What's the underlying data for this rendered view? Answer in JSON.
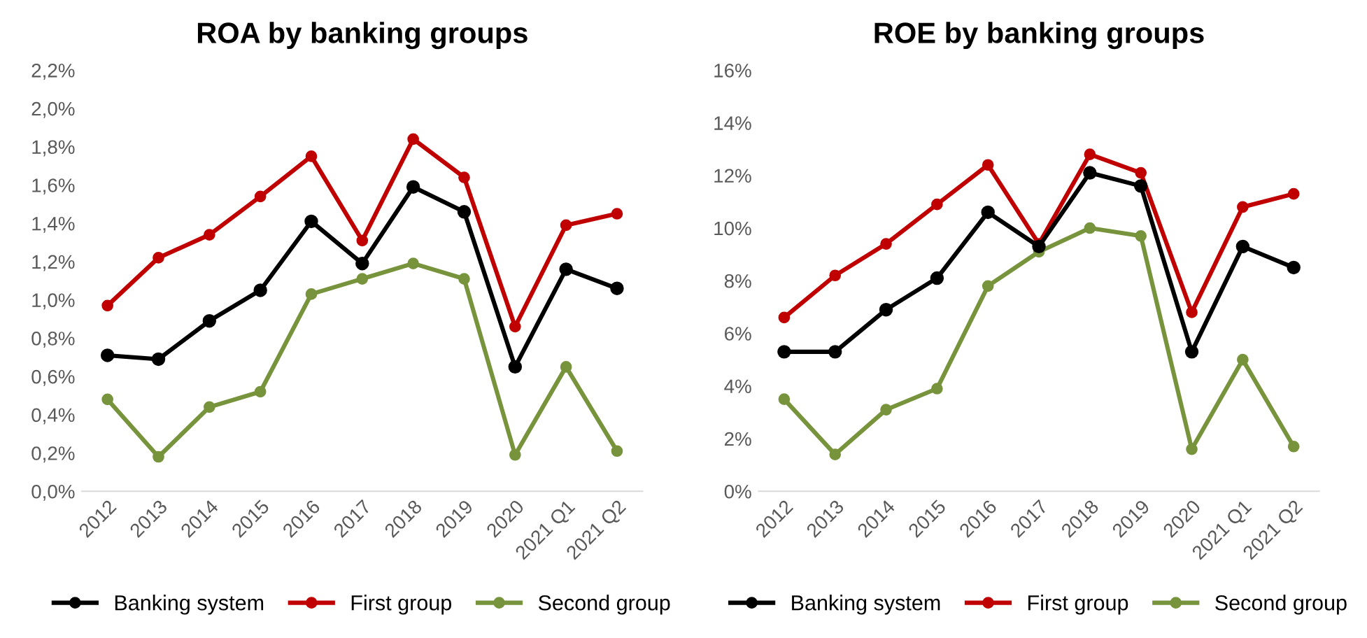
{
  "chart_data": [
    {
      "type": "line",
      "title": "ROA by banking groups",
      "categories": [
        "2012",
        "2013",
        "2014",
        "2015",
        "2016",
        "2017",
        "2018",
        "2019",
        "2020",
        "2021 Q1",
        "2021 Q2"
      ],
      "series": [
        {
          "name": "Banking system",
          "color": "#000000",
          "values": [
            0.71,
            0.69,
            0.89,
            1.05,
            1.41,
            1.19,
            1.59,
            1.46,
            0.65,
            1.16,
            1.06
          ]
        },
        {
          "name": "First group",
          "color": "#c00000",
          "values": [
            0.97,
            1.22,
            1.34,
            1.54,
            1.75,
            1.31,
            1.84,
            1.64,
            0.86,
            1.39,
            1.45
          ]
        },
        {
          "name": "Second group",
          "color": "#77933c",
          "values": [
            0.48,
            0.18,
            0.44,
            0.52,
            1.03,
            1.11,
            1.19,
            1.11,
            0.19,
            0.65,
            0.21
          ]
        }
      ],
      "ylim": [
        0,
        2.2
      ],
      "yticks": [
        {
          "value": 0,
          "label": "0,0%"
        },
        {
          "value": 0.2,
          "label": "0,2%"
        },
        {
          "value": 0.4,
          "label": "0,4%"
        },
        {
          "value": 0.6,
          "label": "0,6%"
        },
        {
          "value": 0.8,
          "label": "0,8%"
        },
        {
          "value": 1.0,
          "label": "1,0%"
        },
        {
          "value": 1.2,
          "label": "1,2%"
        },
        {
          "value": 1.4,
          "label": "1,4%"
        },
        {
          "value": 1.6,
          "label": "1,6%"
        },
        {
          "value": 1.8,
          "label": "1,8%"
        },
        {
          "value": 2.0,
          "label": "2,0%"
        },
        {
          "value": 2.2,
          "label": "2,2%"
        }
      ],
      "grid": false,
      "legend": "bottom",
      "marker": "circle",
      "line_style": "solid"
    },
    {
      "type": "line",
      "title": "ROE by banking groups",
      "categories": [
        "2012",
        "2013",
        "2014",
        "2015",
        "2016",
        "2017",
        "2018",
        "2019",
        "2020",
        "2021 Q1",
        "2021 Q2"
      ],
      "series": [
        {
          "name": "Banking system",
          "color": "#000000",
          "values": [
            5.3,
            5.3,
            6.9,
            8.1,
            10.6,
            9.3,
            12.1,
            11.6,
            5.3,
            9.3,
            8.5
          ]
        },
        {
          "name": "First group",
          "color": "#c00000",
          "values": [
            6.6,
            8.2,
            9.4,
            10.9,
            12.4,
            9.4,
            12.8,
            12.1,
            6.8,
            10.8,
            11.3
          ]
        },
        {
          "name": "Second group",
          "color": "#77933c",
          "values": [
            3.5,
            1.4,
            3.1,
            3.9,
            7.8,
            9.1,
            10.0,
            9.7,
            1.6,
            5.0,
            1.7
          ]
        }
      ],
      "ylim": [
        0,
        16
      ],
      "yticks": [
        {
          "value": 0,
          "label": "0%"
        },
        {
          "value": 2,
          "label": "2%"
        },
        {
          "value": 4,
          "label": "4%"
        },
        {
          "value": 6,
          "label": "6%"
        },
        {
          "value": 8,
          "label": "8%"
        },
        {
          "value": 10,
          "label": "10%"
        },
        {
          "value": 12,
          "label": "12%"
        },
        {
          "value": 14,
          "label": "14%"
        },
        {
          "value": 16,
          "label": "16%"
        }
      ],
      "grid": false,
      "legend": "bottom",
      "marker": "circle",
      "line_style": "solid"
    }
  ]
}
